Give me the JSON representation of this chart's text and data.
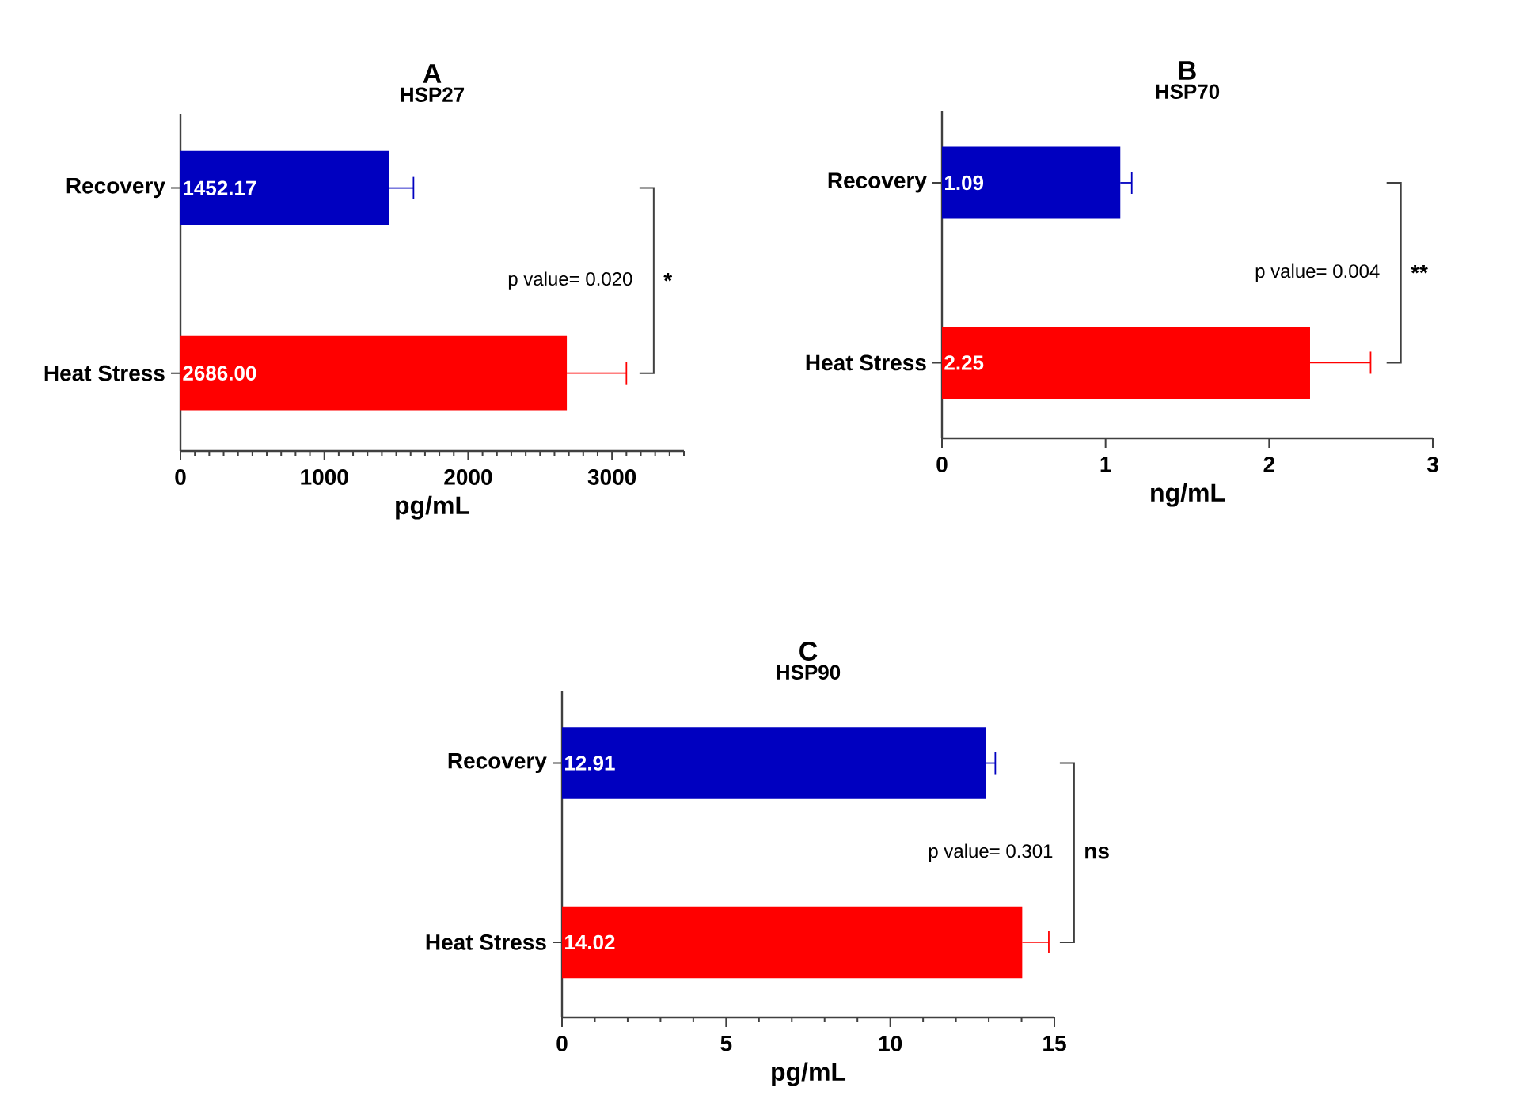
{
  "chart_data": [
    {
      "type": "bar",
      "orientation": "horizontal",
      "title": "A",
      "subtitle": "HSP27",
      "xlabel": "pg/mL",
      "categories": [
        "Recovery",
        "Heat Stress"
      ],
      "values": [
        1452.17,
        2686.0
      ],
      "colors": [
        "#0000c0",
        "#ff0000"
      ],
      "errors": [
        [
          1452.17,
          1620
        ],
        [
          2686.0,
          3100
        ]
      ],
      "value_labels": [
        "1452.17",
        "2686.00"
      ],
      "xlim": [
        0,
        3500
      ],
      "xticks": [
        0,
        {
          "value": 100,
          "label": null
        },
        {
          "value": 200,
          "label": null
        },
        {
          "value": 300,
          "label": null
        },
        {
          "value": 400,
          "label": null
        },
        {
          "value": 500,
          "label": null
        },
        {
          "value": 600,
          "label": null
        },
        {
          "value": 700,
          "label": null
        },
        {
          "value": 800,
          "label": null
        },
        {
          "value": 900,
          "label": null
        },
        1000,
        {
          "value": 1100,
          "label": null
        },
        {
          "value": 1200,
          "label": null
        },
        {
          "value": 1300,
          "label": null
        },
        {
          "value": 1400,
          "label": null
        },
        {
          "value": 1500,
          "label": null
        },
        {
          "value": 1600,
          "label": null
        },
        {
          "value": 1700,
          "label": null
        },
        {
          "value": 1800,
          "label": null
        },
        {
          "value": 1900,
          "label": null
        },
        2000,
        {
          "value": 2100,
          "label": null
        },
        {
          "value": 2200,
          "label": null
        },
        {
          "value": 2300,
          "label": null
        },
        {
          "value": 2400,
          "label": null
        },
        {
          "value": 2500,
          "label": null
        },
        {
          "value": 2600,
          "label": null
        },
        {
          "value": 2700,
          "label": null
        },
        {
          "value": 2800,
          "label": null
        },
        {
          "value": 2900,
          "label": null
        },
        3000,
        {
          "value": 3100,
          "label": null
        },
        {
          "value": 3200,
          "label": null
        },
        {
          "value": 3300,
          "label": null
        },
        {
          "value": 3400,
          "label": null
        },
        {
          "value": 3500,
          "label": null
        }
      ],
      "annotations": [
        "p value= 0.020",
        "*"
      ]
    },
    {
      "type": "bar",
      "orientation": "horizontal",
      "title": "B",
      "subtitle": "HSP70",
      "xlabel": "ng/mL",
      "categories": [
        "Recovery",
        "Heat Stress"
      ],
      "values": [
        1.09,
        2.25
      ],
      "colors": [
        "#0000c0",
        "#ff0000"
      ],
      "errors": [
        [
          1.09,
          1.16
        ],
        [
          2.25,
          2.62
        ]
      ],
      "value_labels": [
        "1.09",
        "2.25"
      ],
      "xlim": [
        0,
        3
      ],
      "xticks": [
        0,
        1,
        2,
        3
      ],
      "annotations": [
        "p value= 0.004",
        "**"
      ]
    },
    {
      "type": "bar",
      "orientation": "horizontal",
      "title": "C",
      "subtitle": "HSP90",
      "xlabel": "pg/mL",
      "categories": [
        "Recovery",
        "Heat Stress"
      ],
      "values": [
        12.91,
        14.02
      ],
      "colors": [
        "#0000c0",
        "#ff0000"
      ],
      "errors": [
        [
          12.91,
          13.2
        ],
        [
          14.02,
          14.83
        ]
      ],
      "value_labels": [
        "12.91",
        "14.02"
      ],
      "xlim": [
        0,
        15
      ],
      "xticks": [
        0,
        {
          "value": 1,
          "label": null
        },
        {
          "value": 2,
          "label": null
        },
        {
          "value": 3,
          "label": null
        },
        {
          "value": 4,
          "label": null
        },
        5,
        {
          "value": 6,
          "label": null
        },
        {
          "value": 7,
          "label": null
        },
        {
          "value": 8,
          "label": null
        },
        {
          "value": 9,
          "label": null
        },
        10,
        {
          "value": 11,
          "label": null
        },
        {
          "value": 12,
          "label": null
        },
        {
          "value": 13,
          "label": null
        },
        {
          "value": 14,
          "label": null
        },
        15
      ],
      "annotations": [
        "p value= 0.301",
        "ns"
      ]
    }
  ]
}
